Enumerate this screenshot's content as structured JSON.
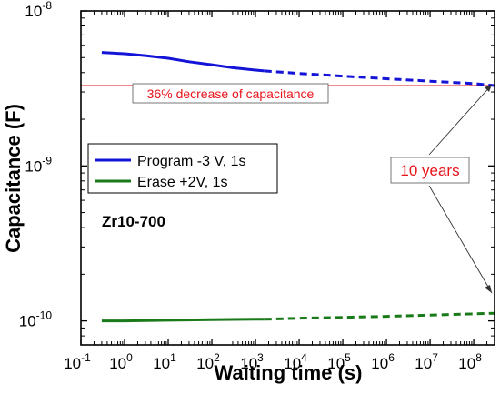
{
  "chart_data": {
    "type": "line",
    "title": "",
    "xlabel": "Waiting time (s)",
    "ylabel": "Capacitance (F)",
    "x_scale": "log",
    "y_scale": "log",
    "xlim": [
      0.1,
      300000000
    ],
    "ylim": [
      7e-11,
      1e-08
    ],
    "x_ticks": [
      {
        "base": "10",
        "exp": "-1"
      },
      {
        "base": "10",
        "exp": "0"
      },
      {
        "base": "10",
        "exp": "1"
      },
      {
        "base": "10",
        "exp": "2"
      },
      {
        "base": "10",
        "exp": "3"
      },
      {
        "base": "10",
        "exp": "4"
      },
      {
        "base": "10",
        "exp": "5"
      },
      {
        "base": "10",
        "exp": "6"
      },
      {
        "base": "10",
        "exp": "7"
      },
      {
        "base": "10",
        "exp": "8"
      }
    ],
    "y_ticks": [
      {
        "base": "10",
        "exp": "-10"
      },
      {
        "base": "10",
        "exp": "-9"
      },
      {
        "base": "10",
        "exp": "-8"
      }
    ],
    "grid": false,
    "legend_position": "middle-left",
    "sample_label": "Zr10-700",
    "series": [
      {
        "name": "Program -3 V, 1s",
        "color": "#1414d8",
        "measured": {
          "x": [
            0.3,
            1,
            3,
            10,
            30,
            100,
            300,
            1000,
            1600
          ],
          "y": [
            5.4e-09,
            5.3e-09,
            5.15e-09,
            4.95e-09,
            4.7e-09,
            4.5e-09,
            4.3e-09,
            4.15e-09,
            4.1e-09
          ]
        },
        "extrapolated": {
          "x": [
            1600,
            10000,
            100000,
            1000000,
            10000000,
            100000000,
            300000000
          ],
          "y": [
            4.1e-09,
            3.95e-09,
            3.8e-09,
            3.65e-09,
            3.52e-09,
            3.4e-09,
            3.3e-09
          ]
        }
      },
      {
        "name": "Erase +2V, 1s",
        "color": "#1a7a1a",
        "measured": {
          "x": [
            0.3,
            1,
            10,
            100,
            1000,
            1600
          ],
          "y": [
            1e-10,
            1e-10,
            1.01e-10,
            1.02e-10,
            1.025e-10,
            1.025e-10
          ]
        },
        "extrapolated": {
          "x": [
            1600,
            10000,
            100000,
            1000000,
            10000000,
            100000000,
            300000000
          ],
          "y": [
            1.025e-10,
            1.04e-10,
            1.055e-10,
            1.07e-10,
            1.09e-10,
            1.11e-10,
            1.12e-10
          ]
        }
      }
    ],
    "reference_line": {
      "y": 3.3e-09,
      "label": "36% decrease of capacitance",
      "color": "#e8141b"
    },
    "annotation": {
      "label": "10 years",
      "color": "#e8141b"
    }
  }
}
